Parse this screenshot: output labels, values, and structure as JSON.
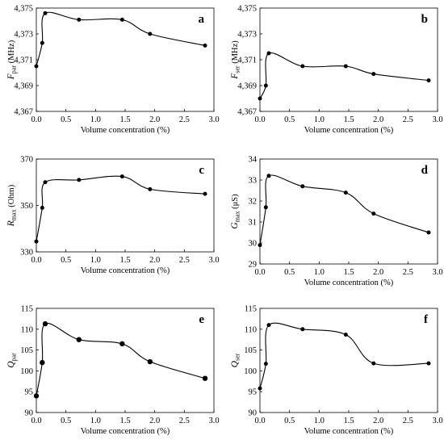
{
  "chart_data": [
    {
      "type": "line",
      "panel": "a",
      "ylabel": "F par (MHz)",
      "ylabel_main": "F",
      "ylabel_sub": "par",
      "ylabel_unit": " (MHz)",
      "xlabel": "Volume concentration (%)",
      "xlim": [
        0,
        3
      ],
      "xticks": [
        "0.0",
        "0.5",
        "1.0",
        "1.5",
        "2.0",
        "2.5",
        "3.0"
      ],
      "ylim": [
        4.367,
        4.375
      ],
      "yticks": [
        "4,367",
        "4,369",
        "4,371",
        "4,373",
        "4,375"
      ],
      "x": [
        0.0,
        0.1,
        0.15,
        0.72,
        1.45,
        1.92,
        2.85
      ],
      "y": [
        4.3705,
        4.3723,
        4.3746,
        4.3741,
        4.3741,
        4.373,
        4.3721
      ],
      "marker_size": "small"
    },
    {
      "type": "line",
      "panel": "b",
      "ylabel": "F ser (MHz)",
      "ylabel_main": "F",
      "ylabel_sub": "ser",
      "ylabel_unit": " (MHz)",
      "xlabel": "Volume concentration (%)",
      "xlim": [
        0,
        3
      ],
      "xticks": [
        "0.0",
        "0.5",
        "1.0",
        "1.5",
        "2.0",
        "2.5",
        "3.0"
      ],
      "ylim": [
        4.367,
        4.375
      ],
      "yticks": [
        "4,367",
        "4,369",
        "4,371",
        "4,373",
        "4,375"
      ],
      "x": [
        0.0,
        0.1,
        0.15,
        0.72,
        1.45,
        1.92,
        2.85
      ],
      "y": [
        4.368,
        4.369,
        4.3715,
        4.3705,
        4.3705,
        4.3699,
        4.3694
      ],
      "marker_size": "small"
    },
    {
      "type": "line",
      "panel": "c",
      "ylabel": "R max (Ohm)",
      "ylabel_main": "R",
      "ylabel_sub": "max",
      "ylabel_unit": " (Ohm)",
      "xlabel": "Volume concentration (%)",
      "xlim": [
        0,
        3
      ],
      "xticks": [
        "0.0",
        "0.5",
        "1.0",
        "1.5",
        "2.0",
        "2.5",
        "3.0"
      ],
      "ylim": [
        330,
        370
      ],
      "yticks": [
        "330",
        "350",
        "370"
      ],
      "x": [
        0.0,
        0.1,
        0.15,
        0.72,
        1.45,
        1.92,
        2.85
      ],
      "y": [
        334.5,
        349,
        360,
        361,
        362.5,
        357,
        355
      ],
      "marker_size": "small"
    },
    {
      "type": "line",
      "panel": "d",
      "ylabel": "G max (μS)",
      "ylabel_main": "G",
      "ylabel_sub": "max",
      "ylabel_unit": " (μS)",
      "xlabel": "Volume concentration (%)",
      "xlim": [
        0,
        3
      ],
      "xticks": [
        "0.0",
        "0.5",
        "1.0",
        "1.5",
        "2.0",
        "2.5",
        "3.0"
      ],
      "ylim": [
        29,
        34
      ],
      "yticks": [
        "29",
        "30",
        "31",
        "32",
        "33",
        "34"
      ],
      "x": [
        0.0,
        0.1,
        0.15,
        0.72,
        1.45,
        1.92,
        2.85
      ],
      "y": [
        29.9,
        31.7,
        33.2,
        32.7,
        32.4,
        31.4,
        30.5
      ],
      "marker_size": "small"
    },
    {
      "type": "line",
      "panel": "e",
      "ylabel": "Q par",
      "ylabel_main": "Q",
      "ylabel_sub": "par",
      "ylabel_unit": "",
      "xlabel": "Volume concentration (%)",
      "xlim": [
        0,
        3
      ],
      "xticks": [
        "0.0",
        "0.5",
        "1.0",
        "1.5",
        "2.0",
        "2.5",
        "3.0"
      ],
      "ylim": [
        90,
        115
      ],
      "yticks": [
        "90",
        "95",
        "100",
        "105",
        "110",
        "115"
      ],
      "x": [
        0.0,
        0.1,
        0.15,
        0.72,
        1.45,
        1.92,
        2.85
      ],
      "y": [
        94,
        102,
        111.3,
        107.5,
        106.5,
        102.2,
        98.2
      ],
      "marker_size": "large"
    },
    {
      "type": "line",
      "panel": "f",
      "ylabel": "Q ser",
      "ylabel_main": "Q",
      "ylabel_sub": "ser",
      "ylabel_unit": "",
      "xlabel": "Volume concentration (%)",
      "xlim": [
        0,
        3
      ],
      "xticks": [
        "0.0",
        "0.5",
        "1.0",
        "1.5",
        "2.0",
        "2.5",
        "3.0"
      ],
      "ylim": [
        90,
        115
      ],
      "yticks": [
        "90",
        "95",
        "100",
        "105",
        "110",
        "115"
      ],
      "x": [
        0.0,
        0.1,
        0.15,
        0.72,
        1.45,
        1.92,
        2.85
      ],
      "y": [
        95.8,
        101.7,
        111,
        110,
        108.7,
        101.8,
        101.8
      ],
      "marker_size": "small"
    }
  ]
}
